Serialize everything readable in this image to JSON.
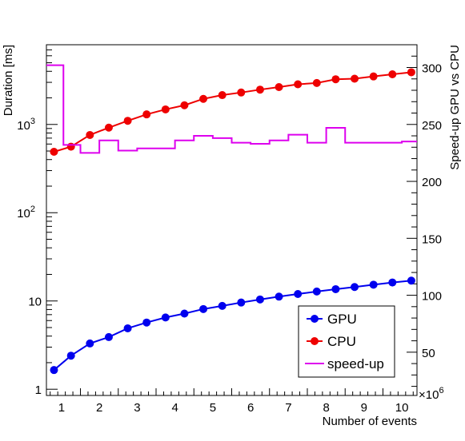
{
  "chart_data": {
    "type": "line",
    "xlabel": "Number of events",
    "x_multiplier_label": "×10",
    "x_multiplier_exp": "6",
    "ylabel_left": "Duration [ms]",
    "ylabel_right": "Speed-up GPU vs CPU",
    "x_range": [
      0.6,
      10.4
    ],
    "y_left_range": [
      0.85,
      8000
    ],
    "y_left_scale": "log",
    "y_right_range": [
      12,
      320
    ],
    "x_ticks": [
      1,
      2,
      3,
      4,
      5,
      6,
      7,
      8,
      9,
      10
    ],
    "x_tick_labels": [
      "1",
      "2",
      "3",
      "4",
      "5",
      "6",
      "7",
      "8",
      "9",
      "10"
    ],
    "y_left_tick_labels": [
      {
        "value": 1,
        "base": "1",
        "exp": ""
      },
      {
        "value": 10,
        "base": "10",
        "exp": ""
      },
      {
        "value": 100,
        "base": "10",
        "exp": "2"
      },
      {
        "value": 1000,
        "base": "10",
        "exp": "3"
      }
    ],
    "y_right_ticks": [
      50,
      100,
      150,
      200,
      250,
      300
    ],
    "y_right_tick_labels": [
      "50",
      "100",
      "150",
      "200",
      "250",
      "300"
    ],
    "grid": false,
    "legend_position": "bottom-right",
    "legend": [
      {
        "label": "GPU",
        "marker": "circle",
        "color": "#0000ee"
      },
      {
        "label": "CPU",
        "marker": "circle",
        "color": "#ee0000"
      },
      {
        "label": "speed-up",
        "marker": "line",
        "color": "#dd00ee"
      }
    ],
    "series": [
      {
        "name": "GPU",
        "axis": "left",
        "color": "#0000ee",
        "x": [
          0.8,
          1.25,
          1.75,
          2.25,
          2.75,
          3.25,
          3.75,
          4.25,
          4.75,
          5.25,
          5.75,
          6.25,
          6.75,
          7.25,
          7.75,
          8.25,
          8.75,
          9.25,
          9.75,
          10.25
        ],
        "y": [
          1.65,
          2.4,
          3.3,
          3.9,
          4.9,
          5.7,
          6.5,
          7.2,
          8.1,
          8.8,
          9.6,
          10.4,
          11.2,
          12.0,
          12.8,
          13.6,
          14.4,
          15.3,
          16.2,
          17.0
        ]
      },
      {
        "name": "CPU",
        "axis": "left",
        "color": "#ee0000",
        "x": [
          0.8,
          1.25,
          1.75,
          2.25,
          2.75,
          3.25,
          3.75,
          4.25,
          4.75,
          5.25,
          5.75,
          6.25,
          6.75,
          7.25,
          7.75,
          8.25,
          8.75,
          9.25,
          9.75,
          10.25
        ],
        "y": [
          490,
          560,
          760,
          920,
          1100,
          1300,
          1480,
          1650,
          1950,
          2150,
          2300,
          2480,
          2650,
          2850,
          2950,
          3250,
          3300,
          3500,
          3700,
          3900
        ]
      },
      {
        "name": "speed-up",
        "axis": "right",
        "color": "#dd00ee",
        "type": "step",
        "bin_edges": [
          0.6,
          1.05,
          1.5,
          2.0,
          2.5,
          3.0,
          3.5,
          4.0,
          4.5,
          5.0,
          5.5,
          6.0,
          6.5,
          7.0,
          7.5,
          8.0,
          8.5,
          9.0,
          9.5,
          10.0,
          10.4
        ],
        "values": [
          302,
          232,
          225,
          236,
          227,
          229,
          229,
          236,
          240,
          238,
          234,
          233,
          236,
          241,
          234,
          247,
          234,
          234,
          234,
          235
        ]
      }
    ]
  }
}
